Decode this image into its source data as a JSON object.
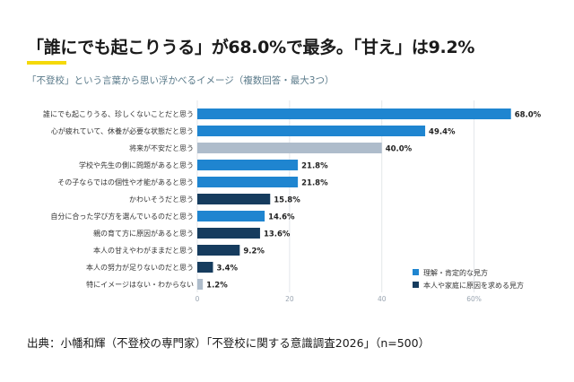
{
  "headline": "「誰にでも起こりうる」が68.0%で最多。「甘え」は9.2%",
  "subtitle": "「不登校」という言葉から思い浮かべるイメージ（複数回答・最大3つ）",
  "source": "出典：小幡和輝（不登校の専門家）「不登校に関する意識調査2026」（n=500）",
  "colors": {
    "accent": "#f5d90a",
    "positive": "#1f85d0",
    "neutral": "#aebccb",
    "negative": "#163c5e"
  },
  "chart_data": {
    "type": "bar",
    "orientation": "horizontal",
    "categories": [
      "誰にでも起こりうる、珍しくないことだと思う",
      "心が疲れていて、休養が必要な状態だと思う",
      "将来が不安だと思う",
      "学校や先生の側に問題があると思う",
      "その子ならではの個性や才能があると思う",
      "かわいそうだと思う",
      "自分に合った学び方を選んでいるのだと思う",
      "親の育て方に原因があると思う",
      "本人の甘えやわがままだと思う",
      "本人の努力が足りないのだと思う",
      "特にイメージはない・わからない"
    ],
    "values": [
      68.0,
      49.4,
      40.0,
      21.8,
      21.8,
      15.8,
      14.6,
      13.6,
      9.2,
      3.4,
      1.2
    ],
    "value_labels": [
      "68.0%",
      "49.4%",
      "40.0%",
      "21.8%",
      "21.8%",
      "15.8%",
      "14.6%",
      "13.6%",
      "9.2%",
      "3.4%",
      "1.2%"
    ],
    "groups": [
      "positive",
      "positive",
      "neutral",
      "positive",
      "positive",
      "negative",
      "positive",
      "negative",
      "negative",
      "negative",
      "neutral"
    ],
    "xlim": [
      0,
      70
    ],
    "xticks": [
      0,
      20,
      40,
      60
    ],
    "xtick_labels": [
      "0",
      "20",
      "40",
      "60%"
    ],
    "grid": true,
    "legend": {
      "position": "bottom-right",
      "items": [
        {
          "group": "positive",
          "label": "理解・肯定的な見方"
        },
        {
          "group": "negative",
          "label": "本人や家庭に原因を求める見方"
        }
      ]
    }
  }
}
